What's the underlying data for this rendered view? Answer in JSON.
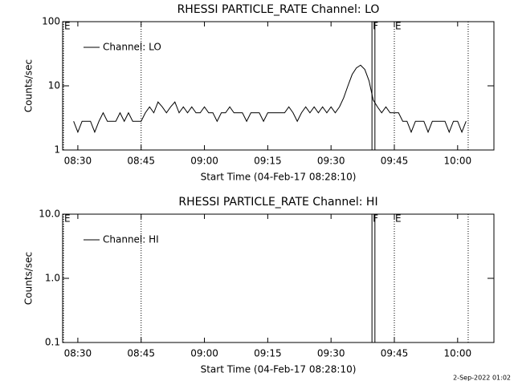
{
  "chart_data": [
    {
      "type": "line",
      "title": "RHESSI PARTICLE_RATE Channel: LO",
      "xlabel": "Start Time (04-Feb-17 08:28:10)",
      "ylabel": "Counts/sec",
      "ylog": true,
      "ylim": [
        1,
        100
      ],
      "yticks": [
        1,
        10,
        100
      ],
      "xlim": [
        506.4,
        608.6
      ],
      "xticks": [
        {
          "value": 510,
          "label": "08:30"
        },
        {
          "value": 525,
          "label": "08:45"
        },
        {
          "value": 540,
          "label": "09:00"
        },
        {
          "value": 555,
          "label": "09:15"
        },
        {
          "value": 570,
          "label": "09:30"
        },
        {
          "value": 585,
          "label": "09:45"
        },
        {
          "value": 600,
          "label": "10:00"
        }
      ],
      "legend": "upper left",
      "events": [
        {
          "x": 506.6,
          "label": "E",
          "style": "dotted"
        },
        {
          "x": 525,
          "style": "dotted"
        },
        {
          "x": 579.7,
          "label": "F",
          "style": "solid"
        },
        {
          "x": 580.4,
          "style": "solid"
        },
        {
          "x": 585,
          "label": "E",
          "style": "dotted"
        },
        {
          "x": 602.5,
          "style": "dotted"
        }
      ],
      "x": [
        509,
        510,
        511,
        512,
        513,
        514,
        515,
        516,
        517,
        518,
        519,
        520,
        521,
        522,
        523,
        524,
        525,
        526,
        527,
        528,
        529,
        530,
        531,
        532,
        533,
        534,
        535,
        536,
        537,
        538,
        539,
        540,
        541,
        542,
        543,
        544,
        545,
        546,
        547,
        548,
        549,
        550,
        551,
        552,
        553,
        554,
        555,
        556,
        557,
        558,
        559,
        560,
        561,
        562,
        563,
        564,
        565,
        566,
        567,
        568,
        569,
        570,
        571,
        572,
        573,
        574,
        575,
        576,
        577,
        578,
        579,
        580,
        581,
        582,
        583,
        584,
        585,
        586,
        587,
        588,
        589,
        590,
        591,
        592,
        593,
        594,
        595,
        596,
        597,
        598,
        599,
        600,
        601,
        602
      ],
      "series": [
        {
          "name": "Channel: LO",
          "color": "#000000",
          "values": [
            2.8,
            1.9,
            2.8,
            2.8,
            2.8,
            1.9,
            2.8,
            3.8,
            2.8,
            2.8,
            2.8,
            3.8,
            2.8,
            3.8,
            2.8,
            2.8,
            2.8,
            3.8,
            4.7,
            3.8,
            5.6,
            4.7,
            3.8,
            4.7,
            5.6,
            3.8,
            4.7,
            3.8,
            4.7,
            3.8,
            3.8,
            4.7,
            3.8,
            3.8,
            2.8,
            3.8,
            3.8,
            4.7,
            3.8,
            3.8,
            3.8,
            2.8,
            3.8,
            3.8,
            3.8,
            2.8,
            3.8,
            3.8,
            3.8,
            3.8,
            3.8,
            4.7,
            3.8,
            2.8,
            3.8,
            4.7,
            3.8,
            4.7,
            3.8,
            4.7,
            3.8,
            4.7,
            3.8,
            4.7,
            6.5,
            10,
            15,
            19,
            21,
            18,
            12,
            6,
            4.7,
            3.8,
            4.7,
            3.8,
            3.8,
            3.8,
            2.8,
            2.8,
            1.9,
            2.8,
            2.8,
            2.8,
            1.9,
            2.8,
            2.8,
            2.8,
            2.8,
            1.9,
            2.8,
            2.8,
            1.9,
            2.8
          ]
        }
      ]
    },
    {
      "type": "line",
      "title": "RHESSI PARTICLE_RATE Channel: HI",
      "xlabel": "Start Time (04-Feb-17 08:28:10)",
      "ylabel": "Counts/sec",
      "ylog": true,
      "ylim": [
        0.1,
        10
      ],
      "yticks": [
        0.1,
        {
          "value": 1,
          "label": "1.0"
        },
        {
          "value": 10,
          "label": "10.0"
        }
      ],
      "xlim": [
        506.4,
        608.6
      ],
      "xticks": [
        {
          "value": 510,
          "label": "08:30"
        },
        {
          "value": 525,
          "label": "08:45"
        },
        {
          "value": 540,
          "label": "09:00"
        },
        {
          "value": 555,
          "label": "09:15"
        },
        {
          "value": 570,
          "label": "09:30"
        },
        {
          "value": 585,
          "label": "09:45"
        },
        {
          "value": 600,
          "label": "10:00"
        }
      ],
      "legend": "upper left",
      "events": [
        {
          "x": 506.6,
          "label": "E",
          "style": "dotted"
        },
        {
          "x": 525,
          "style": "dotted"
        },
        {
          "x": 579.7,
          "label": "F",
          "style": "solid"
        },
        {
          "x": 580.4,
          "style": "solid"
        },
        {
          "x": 585,
          "label": "E",
          "style": "dotted"
        },
        {
          "x": 602.5,
          "style": "dotted"
        }
      ],
      "x": [],
      "series": [
        {
          "name": "Channel: HI",
          "color": "#000000",
          "values": []
        }
      ]
    }
  ],
  "footer": "2-Sep-2022 01:02"
}
